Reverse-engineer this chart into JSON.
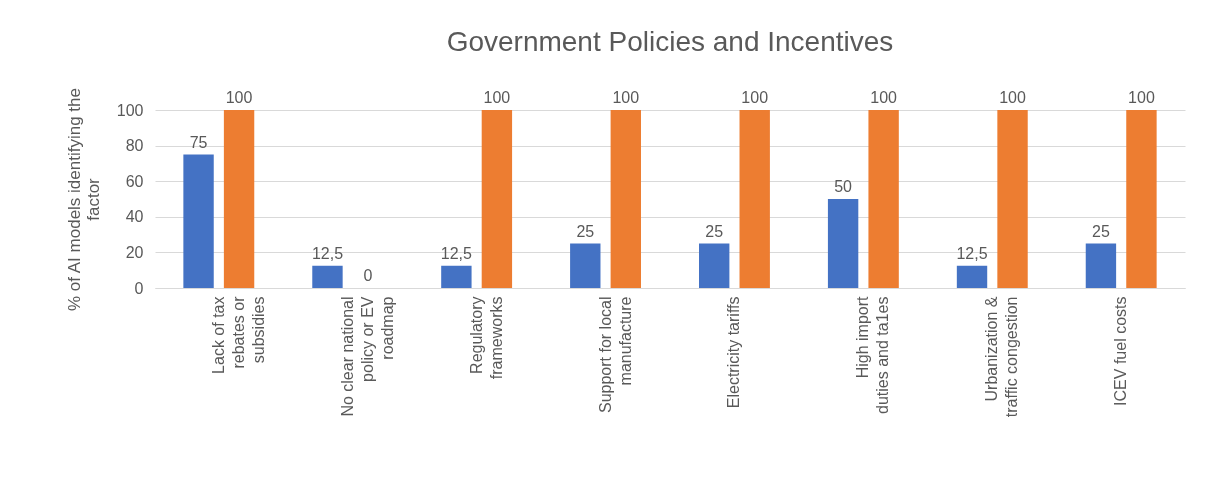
{
  "chart_data": {
    "type": "bar",
    "title": "Government Policies and Incentives",
    "ylabel": "% of AI models identifying the factor",
    "categories": [
      "Lack of tax\nrebates or\nsubsidies",
      "No clear national\npolicy or EV\nroadmap",
      "Regulatory\nframeworks",
      "Support for local\nmanufacture",
      "Electricity tariffs",
      "High import\nduties and ta1es",
      "Urbanization &\ntraffic congestion",
      "ICEV fuel costs"
    ],
    "series": [
      {
        "color": "#4472c4",
        "values": [
          75,
          12.5,
          12.5,
          25,
          25,
          50,
          12.5,
          25
        ],
        "value_labels": [
          "75",
          "12,5",
          "12,5",
          "25",
          "25",
          "50",
          "12,5",
          "25"
        ]
      },
      {
        "color": "#ed7d31",
        "values": [
          100,
          0,
          100,
          100,
          100,
          100,
          100,
          100
        ],
        "value_labels": [
          "100",
          "0",
          "100",
          "100",
          "100",
          "100",
          "100",
          "100"
        ]
      }
    ],
    "ylim": [
      0,
      100
    ],
    "yticks": [
      0,
      20,
      40,
      60,
      80,
      100
    ],
    "grid": "y",
    "legend": false
  }
}
